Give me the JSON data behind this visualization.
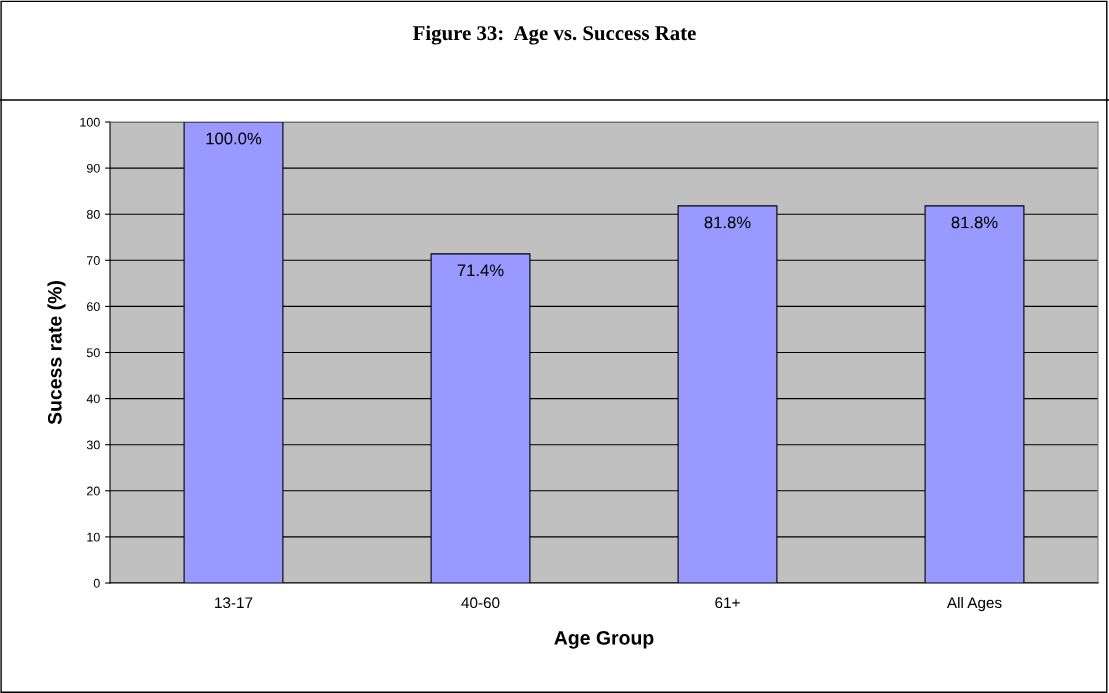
{
  "chart_data": {
    "type": "bar",
    "title": "Figure 33:  Age vs. Success Rate",
    "xlabel": "Age Group",
    "ylabel": "Sucess rate (%)",
    "categories": [
      "13-17",
      "40-60",
      "61+",
      "All Ages"
    ],
    "values": [
      100.0,
      71.4,
      81.8,
      81.8
    ],
    "value_labels": [
      "100.0%",
      "71.4%",
      "81.8%",
      "81.8%"
    ],
    "color": "#9999ff",
    "ylim": [
      0,
      100
    ],
    "yticks": [
      0,
      10,
      20,
      30,
      40,
      50,
      60,
      70,
      80,
      90,
      100
    ],
    "grid": "y"
  }
}
